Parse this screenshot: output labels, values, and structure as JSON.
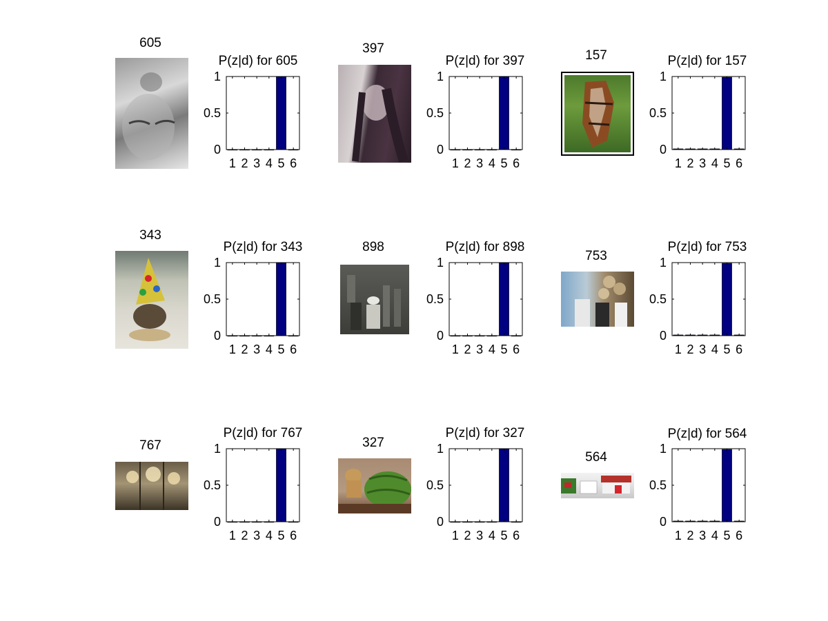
{
  "panels": [
    {
      "id": "605",
      "bar_title": "P(z|d) for 605",
      "image": "grayscale-buddha-face-photo"
    },
    {
      "id": "397",
      "bar_title": "P(z|d) for 397",
      "image": "purple-toned-woman-portrait-photo"
    },
    {
      "id": "157",
      "bar_title": "P(z|d) for 157",
      "image": "horse-head-with-bridle-photo"
    },
    {
      "id": "343",
      "bar_title": "P(z|d) for 343",
      "image": "dog-in-party-hat-photo"
    },
    {
      "id": "898",
      "bar_title": "P(z|d) for 898",
      "image": "bronze-relief-statue-photo"
    },
    {
      "id": "753",
      "bar_title": "P(z|d) for 753",
      "image": "musicians-group-photo"
    },
    {
      "id": "767",
      "bar_title": "P(z|d) for 767",
      "image": "chandeliers-interior-photo"
    },
    {
      "id": "327",
      "bar_title": "P(z|d) for 327",
      "image": "puppy-with-watermelon-photo"
    },
    {
      "id": "564",
      "bar_title": "P(z|d) for 564",
      "image": "street-houses-panorama-photo"
    }
  ],
  "chart_data": [
    {
      "type": "bar",
      "title": "P(z|d) for 605",
      "categories": [
        "1",
        "2",
        "3",
        "4",
        "5",
        "6"
      ],
      "values": [
        0,
        0,
        0,
        0,
        1,
        0
      ],
      "ylim": [
        0,
        1
      ],
      "yticks": [
        "0",
        "0.5",
        "1"
      ],
      "xlabel": "",
      "ylabel": "",
      "color": "#000080"
    },
    {
      "type": "bar",
      "title": "P(z|d) for 397",
      "categories": [
        "1",
        "2",
        "3",
        "4",
        "5",
        "6"
      ],
      "values": [
        0,
        0,
        0,
        0,
        1,
        0
      ],
      "ylim": [
        0,
        1
      ],
      "yticks": [
        "0",
        "0.5",
        "1"
      ],
      "xlabel": "",
      "ylabel": "",
      "color": "#000080"
    },
    {
      "type": "bar",
      "title": "P(z|d) for 157",
      "categories": [
        "1",
        "2",
        "3",
        "4",
        "5",
        "6"
      ],
      "values": [
        0.01,
        0.01,
        0.01,
        0.01,
        0.99,
        0.01
      ],
      "ylim": [
        0,
        1
      ],
      "yticks": [
        "0",
        "0.5",
        "1"
      ],
      "xlabel": "",
      "ylabel": "",
      "color": "#000080"
    },
    {
      "type": "bar",
      "title": "P(z|d) for 343",
      "categories": [
        "1",
        "2",
        "3",
        "4",
        "5",
        "6"
      ],
      "values": [
        0,
        0,
        0,
        0,
        1,
        0
      ],
      "ylim": [
        0,
        1
      ],
      "yticks": [
        "0",
        "0.5",
        "1"
      ],
      "xlabel": "",
      "ylabel": "",
      "color": "#000080"
    },
    {
      "type": "bar",
      "title": "P(z|d) for 898",
      "categories": [
        "1",
        "2",
        "3",
        "4",
        "5",
        "6"
      ],
      "values": [
        0,
        0,
        0,
        0,
        1,
        0
      ],
      "ylim": [
        0,
        1
      ],
      "yticks": [
        "0",
        "0.5",
        "1"
      ],
      "xlabel": "",
      "ylabel": "",
      "color": "#000080"
    },
    {
      "type": "bar",
      "title": "P(z|d) for 753",
      "categories": [
        "1",
        "2",
        "3",
        "4",
        "5",
        "6"
      ],
      "values": [
        0.01,
        0.01,
        0.01,
        0.01,
        0.99,
        0.01
      ],
      "ylim": [
        0,
        1
      ],
      "yticks": [
        "0",
        "0.5",
        "1"
      ],
      "xlabel": "",
      "ylabel": "",
      "color": "#000080"
    },
    {
      "type": "bar",
      "title": "P(z|d) for 767",
      "categories": [
        "1",
        "2",
        "3",
        "4",
        "5",
        "6"
      ],
      "values": [
        0,
        0,
        0,
        0,
        1,
        0
      ],
      "ylim": [
        0,
        1
      ],
      "yticks": [
        "0",
        "0.5",
        "1"
      ],
      "xlabel": "",
      "ylabel": "",
      "color": "#000080"
    },
    {
      "type": "bar",
      "title": "P(z|d) for 327",
      "categories": [
        "1",
        "2",
        "3",
        "4",
        "5",
        "6"
      ],
      "values": [
        0,
        0,
        0,
        0,
        1,
        0
      ],
      "ylim": [
        0,
        1
      ],
      "yticks": [
        "0",
        "0.5",
        "1"
      ],
      "xlabel": "",
      "ylabel": "",
      "color": "#000080"
    },
    {
      "type": "bar",
      "title": "P(z|d) for 564",
      "categories": [
        "1",
        "2",
        "3",
        "4",
        "5",
        "6"
      ],
      "values": [
        0.01,
        0.01,
        0.01,
        0.01,
        0.99,
        0.01
      ],
      "ylim": [
        0,
        1
      ],
      "yticks": [
        "0",
        "0.5",
        "1"
      ],
      "xlabel": "",
      "ylabel": "",
      "color": "#000080"
    }
  ]
}
